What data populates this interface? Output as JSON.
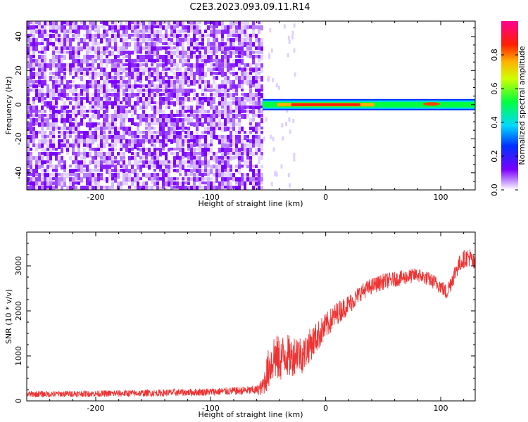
{
  "title": "C2E3.2023.093.09.11.R14",
  "chart_data": [
    {
      "type": "heatmap",
      "title": "",
      "xlabel": "Height of straight line (km)",
      "ylabel": "Frequency (Hz)",
      "xlim": [
        -260,
        130
      ],
      "ylim": [
        -50,
        49
      ],
      "xticks": [
        -200,
        -100,
        0,
        100
      ],
      "yticks": [
        -40,
        -20,
        0,
        20,
        40
      ],
      "noise_region_x": [
        -260,
        -55
      ],
      "signal_line": {
        "x_start": -55,
        "x_end": 130,
        "frequency": 0,
        "peak_amplitude_x": [
          -30,
          30
        ],
        "peak_amplitude": 1.0,
        "background_amplitude": 0.45
      },
      "colorbar": {
        "label": "Normalized spectral amplitude",
        "range": [
          0,
          1
        ],
        "ticks": [
          0.0,
          0.2,
          0.4,
          0.6,
          0.8
        ]
      }
    },
    {
      "type": "line",
      "title": "",
      "xlabel": "Height of straight line (km)",
      "ylabel": "SNR (10 * v/v)",
      "xlim": [
        -260,
        130
      ],
      "ylim": [
        0,
        3750
      ],
      "xticks": [
        -200,
        -100,
        0,
        100
      ],
      "yticks": [
        0,
        1000,
        2000,
        3000
      ],
      "series": [
        {
          "color": "#ee3333",
          "x": [
            -260,
            -240,
            -220,
            -200,
            -180,
            -160,
            -140,
            -120,
            -100,
            -80,
            -60,
            -55,
            -50,
            -45,
            -40,
            -35,
            -30,
            -25,
            -20,
            -15,
            -10,
            -5,
            0,
            5,
            10,
            15,
            20,
            25,
            30,
            40,
            50,
            60,
            70,
            80,
            90,
            100,
            105,
            110,
            115,
            120,
            125,
            130
          ],
          "values": [
            150,
            150,
            160,
            160,
            165,
            170,
            180,
            190,
            200,
            220,
            240,
            300,
            700,
            1000,
            900,
            1050,
            950,
            1100,
            1000,
            1200,
            1350,
            1500,
            1650,
            1800,
            1950,
            2050,
            2150,
            2250,
            2400,
            2550,
            2650,
            2700,
            2750,
            2800,
            2700,
            2550,
            2400,
            2700,
            3000,
            3150,
            3200,
            3000
          ],
          "noise_amplitude": [
            70,
            70,
            70,
            70,
            75,
            75,
            80,
            80,
            85,
            90,
            100,
            200,
            450,
            550,
            500,
            500,
            450,
            450,
            400,
            380,
            350,
            330,
            300,
            280,
            260,
            240,
            220,
            200,
            190,
            180,
            180,
            170,
            170,
            160,
            160,
            170,
            180,
            200,
            200,
            200,
            220,
            200
          ]
        }
      ]
    }
  ]
}
